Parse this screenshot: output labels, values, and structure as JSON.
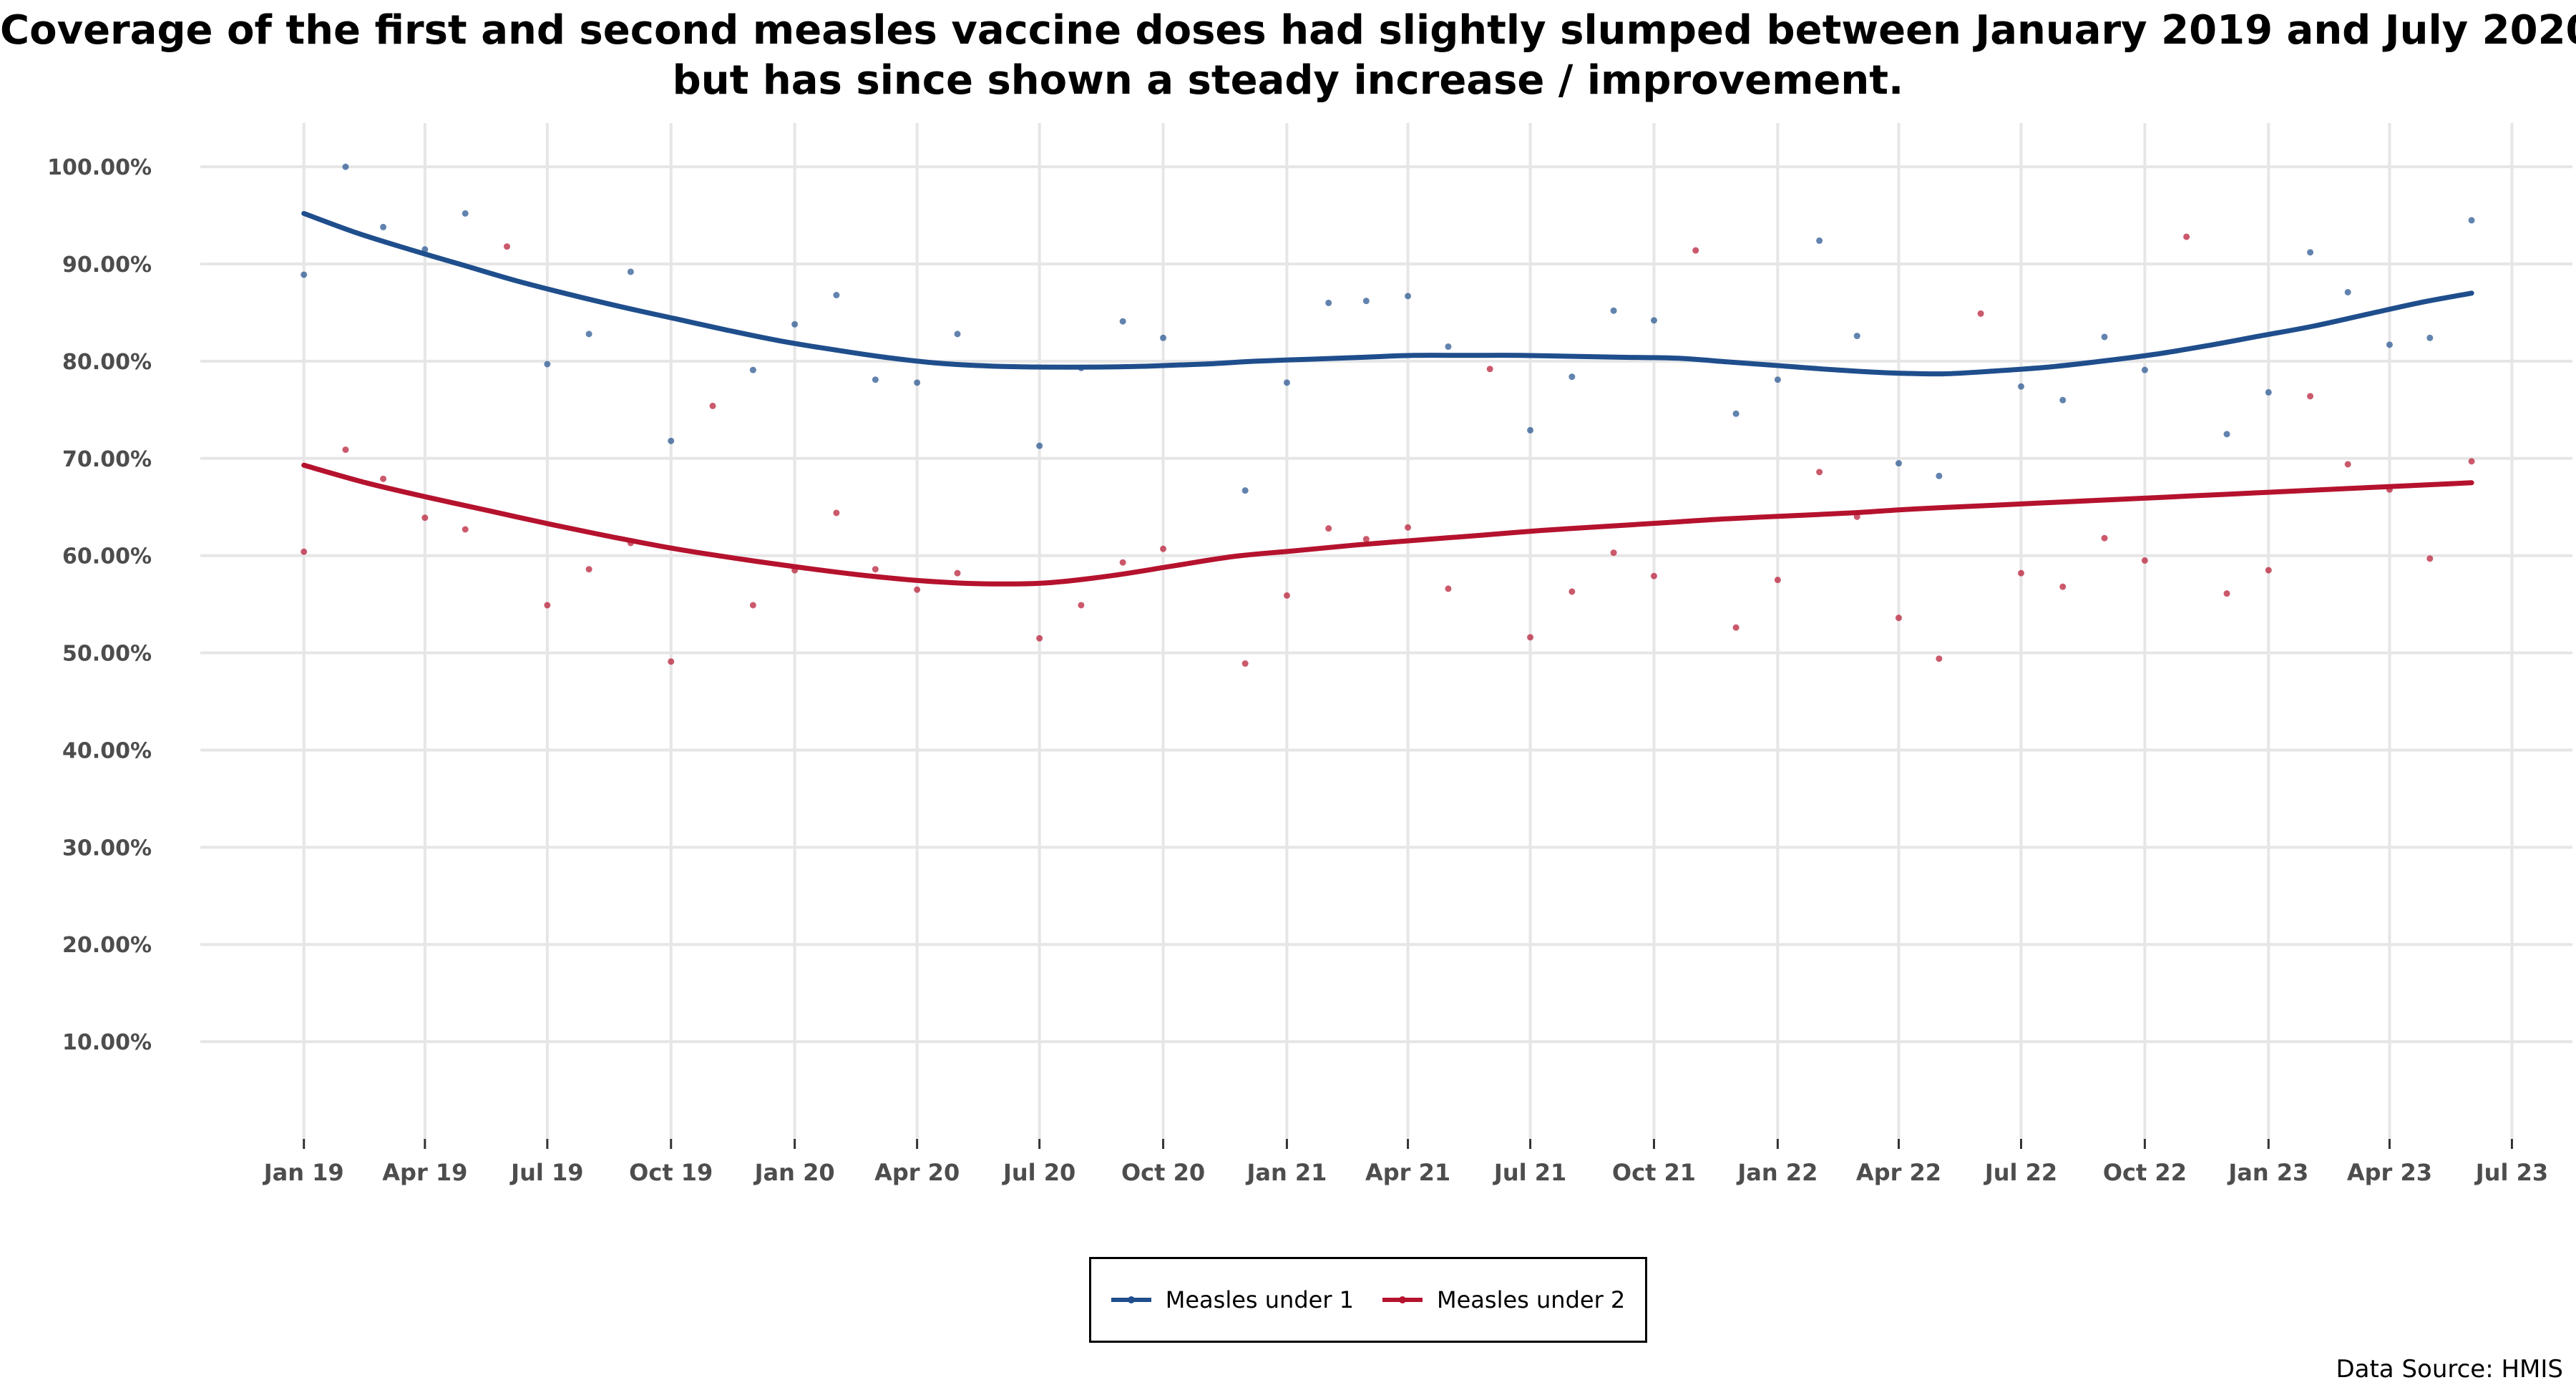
{
  "chart_data": {
    "type": "line",
    "title_lines": [
      "Coverage of the first and second measles vaccine doses had slightly slumped between January 2019 and July 2020,",
      "but has since shown a steady increase / improvement."
    ],
    "xlabel": "",
    "ylabel": "",
    "x_tick_labels": [
      "Jan 19",
      "Apr 19",
      "Jul 19",
      "Oct 19",
      "Jan 20",
      "Apr 20",
      "Jul 20",
      "Oct 20",
      "Jan 21",
      "Apr 21",
      "Jul 21",
      "Oct 21",
      "Jan 22",
      "Apr 22",
      "Jul 22",
      "Oct 22",
      "Jan 23",
      "Apr 23",
      "Jul 23"
    ],
    "y_tick_labels": [
      "10.00%",
      "20.00%",
      "30.00%",
      "40.00%",
      "50.00%",
      "60.00%",
      "70.00%",
      "80.00%",
      "90.00%",
      "100.00%"
    ],
    "y_ticks": [
      10,
      20,
      30,
      40,
      50,
      60,
      70,
      80,
      90,
      100
    ],
    "ylim": [
      0,
      104.5
    ],
    "xlim": [
      "2018-10-16",
      "2023-08-15"
    ],
    "grid": true,
    "legend_position": "bottom",
    "x": [
      "2019-01",
      "2019-02",
      "2019-03",
      "2019-04",
      "2019-05",
      "2019-06",
      "2019-07",
      "2019-08",
      "2019-09",
      "2019-10",
      "2019-11",
      "2019-12",
      "2020-01",
      "2020-02",
      "2020-03",
      "2020-04",
      "2020-05",
      "2020-06",
      "2020-07",
      "2020-08",
      "2020-09",
      "2020-10",
      "2020-11",
      "2020-12",
      "2021-01",
      "2021-02",
      "2021-03",
      "2021-04",
      "2021-05",
      "2021-06",
      "2021-07",
      "2021-08",
      "2021-09",
      "2021-10",
      "2021-11",
      "2021-12",
      "2022-01",
      "2022-02",
      "2022-03",
      "2022-04",
      "2022-05",
      "2022-06",
      "2022-07",
      "2022-08",
      "2022-09",
      "2022-10",
      "2022-11",
      "2022-12",
      "2023-01",
      "2023-02",
      "2023-03",
      "2023-04",
      "2023-05",
      "2023-06"
    ],
    "series": [
      {
        "name": "Measles under 1",
        "color": "#1f4e8c",
        "values": [
          88.9,
          100.0,
          93.8,
          91.5,
          95.2,
          null,
          79.7,
          82.8,
          89.2,
          71.8,
          null,
          79.1,
          83.8,
          86.8,
          78.1,
          77.8,
          82.8,
          null,
          71.3,
          79.3,
          84.1,
          82.4,
          null,
          66.7,
          77.8,
          86.0,
          86.2,
          86.7,
          81.5,
          null,
          72.9,
          78.4,
          85.2,
          84.2,
          null,
          74.6,
          78.1,
          92.4,
          82.6,
          69.5,
          68.2,
          null,
          77.4,
          76.0,
          82.5,
          79.1,
          null,
          72.5,
          76.8,
          91.2,
          87.1,
          81.7,
          82.4,
          94.5
        ],
        "trend": [
          95.2,
          93.2,
          91.5,
          89.9,
          88.3,
          86.9,
          85.6,
          84.4,
          83.2,
          82.1,
          81.2,
          80.4,
          79.8,
          79.5,
          79.4,
          79.4,
          79.5,
          79.7,
          80.0,
          80.2,
          80.4,
          80.6,
          80.6,
          80.6,
          80.5,
          80.4,
          80.3,
          79.9,
          79.5,
          79.1,
          78.8,
          78.7,
          79.0,
          79.4,
          80.0,
          80.7,
          81.6,
          82.6,
          83.6,
          84.8,
          86.0,
          87.0
        ]
      },
      {
        "name": "Measles under 2",
        "color": "#b5122e",
        "values": [
          60.4,
          70.9,
          67.9,
          63.9,
          62.7,
          91.8,
          54.9,
          58.6,
          61.3,
          49.1,
          75.4,
          54.9,
          58.5,
          64.4,
          58.6,
          56.5,
          58.2,
          null,
          51.5,
          54.9,
          59.3,
          60.7,
          null,
          48.9,
          55.9,
          62.8,
          61.7,
          62.9,
          56.6,
          79.2,
          51.6,
          56.3,
          60.3,
          57.9,
          91.4,
          52.6,
          57.5,
          68.6,
          64.0,
          53.6,
          49.4,
          84.9,
          58.2,
          56.8,
          61.8,
          59.5,
          92.8,
          56.1,
          58.5,
          76.4,
          69.4,
          66.8,
          59.7,
          69.7
        ],
        "trend": [
          69.3,
          67.5,
          66.0,
          64.6,
          63.2,
          61.9,
          60.7,
          59.7,
          58.8,
          58.0,
          57.4,
          57.1,
          57.2,
          57.9,
          58.9,
          59.9,
          60.5,
          61.1,
          61.6,
          62.1,
          62.6,
          63.0,
          63.4,
          63.8,
          64.1,
          64.4,
          64.8,
          65.1,
          65.4,
          65.7,
          66.0,
          66.3,
          66.6,
          66.9,
          67.2,
          67.5
        ]
      }
    ],
    "source": "Data Source: HMIS"
  }
}
